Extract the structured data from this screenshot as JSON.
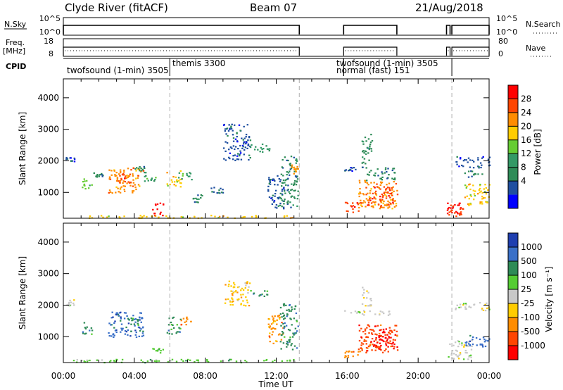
{
  "header": {
    "radar": "Clyde River (fitACF)",
    "beam": "Beam 07",
    "date": "21/Aug/2018"
  },
  "top_panels": {
    "nsky_label": "N.Sky",
    "nsky_ticks": [
      "10^5",
      "10^0"
    ],
    "nsearch_label": "N.Search",
    "nsearch_ticks": [
      "10^5",
      "10^0"
    ],
    "freq_label_1": "Freq.",
    "freq_label_2": "[MHz]",
    "freq_ticks": [
      "18",
      "8"
    ],
    "nave_label": "Nave",
    "nave_ticks": [
      "80",
      "0"
    ],
    "cpid_label": "CPID"
  },
  "cpid_segments": [
    {
      "label": "twofsound (1-min) 3505",
      "start_hr": 0.0,
      "row": 2
    },
    {
      "label": "themis 3300",
      "start_hr": 6.0,
      "row": 1
    },
    {
      "label": "twofsound (1-min) 3505",
      "start_hr": 15.8,
      "row": 1
    },
    {
      "label": "normal (fast) 151",
      "start_hr": 15.8,
      "row": 2
    }
  ],
  "mode_boundaries_hr": [
    6.0,
    13.3,
    21.9
  ],
  "coverage_hr": [
    [
      0.0,
      13.3
    ],
    [
      15.8,
      18.8
    ],
    [
      21.6,
      21.8
    ],
    [
      21.9,
      24.0
    ]
  ],
  "chart_data": [
    {
      "type": "heatmap",
      "parameter": "Power",
      "ylabel": "Slant Range [km]",
      "xlabel": "Time UT",
      "x_range_hr": [
        0,
        24
      ],
      "ylim": [
        180,
        4600
      ],
      "y_ticks": [
        "1000",
        "2000",
        "3000",
        "4000"
      ],
      "x_ticks": [
        "00:00",
        "04:00",
        "08:00",
        "12:00",
        "16:00",
        "20:00",
        "00:00"
      ],
      "colorbar_label": "Power [dB]",
      "colorbar_ticks": [
        "28",
        "24",
        "20",
        "16",
        "12",
        "8",
        "4"
      ],
      "colorbar_colors": [
        "#ff0000",
        "#ff4500",
        "#ff8c00",
        "#ffcc00",
        "#66cc33",
        "#339966",
        "#2e8b57",
        "#1f4fa0",
        "#0000ff"
      ],
      "regions": [
        {
          "t": [
            1.3,
            13.2
          ],
          "r": [
            200,
            290
          ],
          "level": 3
        },
        {
          "t": [
            0.1,
            0.6
          ],
          "r": [
            2000,
            2150
          ],
          "level": 7
        },
        {
          "t": [
            1.0,
            1.6
          ],
          "r": [
            1100,
            1450
          ],
          "level": 4
        },
        {
          "t": [
            1.6,
            2.2
          ],
          "r": [
            1500,
            1700
          ],
          "level": 6
        },
        {
          "t": [
            2.5,
            4.5
          ],
          "r": [
            1000,
            1800
          ],
          "level": 2
        },
        {
          "t": [
            3.0,
            3.8
          ],
          "r": [
            1250,
            1600
          ],
          "level": 1
        },
        {
          "t": [
            4.0,
            4.6
          ],
          "r": [
            1600,
            1850
          ],
          "level": 6
        },
        {
          "t": [
            4.5,
            5.2
          ],
          "r": [
            1350,
            1550
          ],
          "level": 5
        },
        {
          "t": [
            5.0,
            5.6
          ],
          "r": [
            220,
            700
          ],
          "level": 0
        },
        {
          "t": [
            5.8,
            6.6
          ],
          "r": [
            1200,
            1700
          ],
          "level": 3
        },
        {
          "t": [
            6.4,
            7.2
          ],
          "r": [
            1400,
            1650
          ],
          "level": 5
        },
        {
          "t": [
            7.2,
            7.8
          ],
          "r": [
            700,
            1000
          ],
          "level": 6
        },
        {
          "t": [
            8.3,
            9.0
          ],
          "r": [
            1000,
            1200
          ],
          "level": 7
        },
        {
          "t": [
            9.0,
            10.5
          ],
          "r": [
            2000,
            3200
          ],
          "level": 7
        },
        {
          "t": [
            10.5,
            11.6
          ],
          "r": [
            2300,
            2600
          ],
          "level": 5
        },
        {
          "t": [
            11.5,
            12.4
          ],
          "r": [
            500,
            1600
          ],
          "level": 7
        },
        {
          "t": [
            12.2,
            13.2
          ],
          "r": [
            500,
            2200
          ],
          "level": 6
        },
        {
          "t": [
            12.8,
            13.2
          ],
          "r": [
            1600,
            1900
          ],
          "level": 2
        },
        {
          "t": [
            15.8,
            16.5
          ],
          "r": [
            1700,
            1850
          ],
          "level": 7
        },
        {
          "t": [
            15.8,
            16.8
          ],
          "r": [
            350,
            700
          ],
          "level": 1
        },
        {
          "t": [
            16.6,
            18.8
          ],
          "r": [
            500,
            1400
          ],
          "level": 2
        },
        {
          "t": [
            17.0,
            18.6
          ],
          "r": [
            600,
            1200
          ],
          "level": 1
        },
        {
          "t": [
            17.0,
            18.7
          ],
          "r": [
            1400,
            1800
          ],
          "level": 6
        },
        {
          "t": [
            16.8,
            17.4
          ],
          "r": [
            1800,
            2900
          ],
          "level": 6
        },
        {
          "t": [
            21.6,
            22.6
          ],
          "r": [
            250,
            750
          ],
          "level": 0
        },
        {
          "t": [
            21.7,
            22.5
          ],
          "r": [
            300,
            500
          ],
          "level": 1
        },
        {
          "t": [
            22.6,
            24.0
          ],
          "r": [
            600,
            1300
          ],
          "level": 3
        },
        {
          "t": [
            22.0,
            24.0
          ],
          "r": [
            1800,
            2150
          ],
          "level": 7
        },
        {
          "t": [
            22.5,
            23.6
          ],
          "r": [
            1500,
            1700
          ],
          "level": 6
        }
      ]
    },
    {
      "type": "heatmap",
      "parameter": "Velocity",
      "ylabel": "Slant Range [km]",
      "xlabel": "Time UT",
      "x_range_hr": [
        0,
        24
      ],
      "ylim": [
        180,
        4600
      ],
      "y_ticks": [
        "1000",
        "2000",
        "3000",
        "4000"
      ],
      "x_ticks": [
        "00:00",
        "04:00",
        "08:00",
        "12:00",
        "16:00",
        "20:00",
        "00:00"
      ],
      "colorbar_label": "Velocity [m s⁻¹]",
      "colorbar_ticks": [
        "1000",
        "500",
        "100",
        "25",
        "-25",
        "-100",
        "-500",
        "-1000"
      ],
      "colorbar_colors": [
        "#1f3fb0",
        "#3a70c8",
        "#2e8b57",
        "#55cc33",
        "#c8c8c8",
        "#ffcc00",
        "#ff8c00",
        "#ff4500",
        "#ff0000"
      ],
      "regions": [
        {
          "t": [
            0.5,
            13.2
          ],
          "r": [
            200,
            300
          ],
          "level": 3
        },
        {
          "t": [
            0.1,
            0.6
          ],
          "r": [
            2000,
            2200
          ],
          "level": 4
        },
        {
          "t": [
            1.0,
            1.6
          ],
          "r": [
            1100,
            1500
          ],
          "level": 2
        },
        {
          "t": [
            2.5,
            4.5
          ],
          "r": [
            1000,
            1800
          ],
          "level": 1
        },
        {
          "t": [
            3.5,
            4.4
          ],
          "r": [
            1300,
            1600
          ],
          "level": 2
        },
        {
          "t": [
            5.0,
            5.6
          ],
          "r": [
            220,
            700
          ],
          "level": 3
        },
        {
          "t": [
            5.8,
            6.6
          ],
          "r": [
            1100,
            1650
          ],
          "level": 2
        },
        {
          "t": [
            6.5,
            7.3
          ],
          "r": [
            1400,
            1650
          ],
          "level": 6
        },
        {
          "t": [
            9.0,
            10.5
          ],
          "r": [
            2000,
            2800
          ],
          "level": 5
        },
        {
          "t": [
            10.5,
            11.6
          ],
          "r": [
            2300,
            2500
          ],
          "level": 2
        },
        {
          "t": [
            11.5,
            12.4
          ],
          "r": [
            800,
            1700
          ],
          "level": 6
        },
        {
          "t": [
            12.2,
            13.2
          ],
          "r": [
            600,
            2100
          ],
          "level": 2
        },
        {
          "t": [
            15.8,
            18.8
          ],
          "r": [
            1700,
            1850
          ],
          "level": 4
        },
        {
          "t": [
            15.8,
            16.8
          ],
          "r": [
            350,
            700
          ],
          "level": 6
        },
        {
          "t": [
            16.6,
            18.8
          ],
          "r": [
            500,
            1400
          ],
          "level": 7
        },
        {
          "t": [
            17.3,
            18.6
          ],
          "r": [
            600,
            1300
          ],
          "level": 8
        },
        {
          "t": [
            16.8,
            17.4
          ],
          "r": [
            2000,
            2600
          ],
          "level": 4
        },
        {
          "t": [
            21.6,
            23.0
          ],
          "r": [
            300,
            900
          ],
          "level": 4
        },
        {
          "t": [
            22.6,
            24.0
          ],
          "r": [
            700,
            1100
          ],
          "level": 1
        },
        {
          "t": [
            22.0,
            24.0
          ],
          "r": [
            1800,
            2100
          ],
          "level": 4
        }
      ]
    }
  ]
}
